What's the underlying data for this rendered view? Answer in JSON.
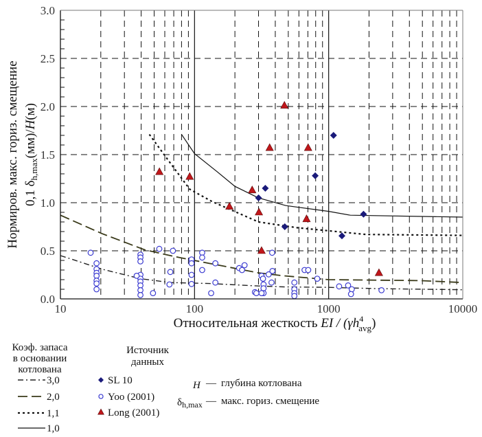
{
  "chart_data": {
    "type": "scatter",
    "x_scale": "log",
    "xlim": [
      10,
      10000
    ],
    "ylim": [
      0,
      3.0
    ],
    "x_ticks": [
      "10",
      "100",
      "1000",
      "10000"
    ],
    "y_ticks": [
      "0.0",
      "0.5",
      "1.0",
      "1.5",
      "2.0",
      "2.5",
      "3.0"
    ],
    "grid": true,
    "xlabel": {
      "text": "Относительная жесткость ",
      "formula": "EI / (γh",
      "sup": "4",
      "sub": "avg",
      "close": ")"
    },
    "ylabel": {
      "line1": "Нормиров. макс. гориз. смещение",
      "line2_pre": "0,1 δ",
      "line2_sub": "h,max",
      "line2_post": "(мм)/",
      "line2_H": "H",
      "line2_end": "(м)"
    },
    "curves": [
      {
        "name": "3,0",
        "style": "dashdot",
        "color": "#222222",
        "points": [
          [
            10,
            0.45
          ],
          [
            11.7,
            0.42
          ],
          [
            20.3,
            0.31
          ],
          [
            39.5,
            0.21
          ],
          [
            66,
            0.17
          ],
          [
            128,
            0.16
          ],
          [
            290,
            0.135
          ],
          [
            461,
            0.125
          ],
          [
            1000,
            0.12
          ],
          [
            2220,
            0.107
          ],
          [
            10000,
            0.095
          ]
        ]
      },
      {
        "name": "2,0",
        "style": "dashed",
        "color": "#3a3a1a",
        "points": [
          [
            10,
            0.87
          ],
          [
            20.3,
            0.68
          ],
          [
            42.6,
            0.51
          ],
          [
            71,
            0.44
          ],
          [
            128,
            0.37
          ],
          [
            302,
            0.27
          ],
          [
            461,
            0.24
          ],
          [
            1000,
            0.2
          ],
          [
            4860,
            0.19
          ],
          [
            10000,
            0.17
          ]
        ]
      },
      {
        "name": "1,1",
        "style": "dotted",
        "color": "#111111",
        "points": [
          [
            46,
            1.71
          ],
          [
            60,
            1.49
          ],
          [
            92,
            1.14
          ],
          [
            136,
            1.01
          ],
          [
            300,
            0.8
          ],
          [
            582,
            0.74
          ],
          [
            1890,
            0.67
          ],
          [
            10000,
            0.66
          ]
        ]
      },
      {
        "name": "1,0",
        "style": "solid",
        "color": "#111111",
        "points": [
          [
            80,
            1.71
          ],
          [
            100,
            1.51
          ],
          [
            148,
            1.32
          ],
          [
            200,
            1.17
          ],
          [
            300,
            1.05
          ],
          [
            479,
            0.97
          ],
          [
            1000,
            0.91
          ],
          [
            1450,
            0.87
          ],
          [
            10000,
            0.85
          ]
        ]
      }
    ],
    "series": [
      {
        "name": "SL 10",
        "marker": "diamond",
        "color": "#1a1a7a",
        "points": [
          [
            1087,
            1.7
          ],
          [
            794,
            1.28
          ],
          [
            337,
            1.15
          ],
          [
            300,
            1.05
          ],
          [
            1820,
            0.88
          ],
          [
            471,
            0.75
          ],
          [
            1256,
            0.655
          ]
        ]
      },
      {
        "name": "Yoo (2001)",
        "marker": "circle-open",
        "color": "#3a3ad0",
        "points": [
          [
            16.8,
            0.48
          ],
          [
            18.6,
            0.37
          ],
          [
            18.6,
            0.31
          ],
          [
            18.6,
            0.27
          ],
          [
            18.6,
            0.24
          ],
          [
            18.6,
            0.19
          ],
          [
            18.6,
            0.16
          ],
          [
            18.6,
            0.1
          ],
          [
            39.5,
            0.46
          ],
          [
            39.5,
            0.43
          ],
          [
            39.5,
            0.39
          ],
          [
            39.5,
            0.25
          ],
          [
            39.5,
            0.21
          ],
          [
            39.5,
            0.18
          ],
          [
            39.5,
            0.14
          ],
          [
            39.5,
            0.09
          ],
          [
            39.5,
            0.04
          ],
          [
            37,
            0.24
          ],
          [
            49,
            0.06
          ],
          [
            54.6,
            0.52
          ],
          [
            69,
            0.5
          ],
          [
            66,
            0.28
          ],
          [
            65,
            0.15
          ],
          [
            95,
            0.41
          ],
          [
            95,
            0.37
          ],
          [
            95,
            0.25
          ],
          [
            95,
            0.155
          ],
          [
            114,
            0.48
          ],
          [
            114,
            0.43
          ],
          [
            114,
            0.3
          ],
          [
            143,
            0.37
          ],
          [
            143,
            0.17
          ],
          [
            133,
            0.06
          ],
          [
            215,
            0.32
          ],
          [
            226,
            0.3
          ],
          [
            236,
            0.35
          ],
          [
            282,
            0.07
          ],
          [
            289,
            0.06
          ],
          [
            316,
            0.24
          ],
          [
            324,
            0.21
          ],
          [
            327,
            0.15
          ],
          [
            327,
            0.11
          ],
          [
            327,
            0.06
          ],
          [
            316,
            0.06
          ],
          [
            379,
            0.48
          ],
          [
            357,
            0.255
          ],
          [
            381,
            0.29
          ],
          [
            375,
            0.17
          ],
          [
            555,
            0.17
          ],
          [
            555,
            0.1
          ],
          [
            555,
            0.06
          ],
          [
            555,
            0.03
          ],
          [
            661,
            0.3
          ],
          [
            704,
            0.3
          ],
          [
            822,
            0.21
          ],
          [
            1197,
            0.13
          ],
          [
            1396,
            0.14
          ],
          [
            1487,
            0.1
          ],
          [
            1468,
            0.05
          ],
          [
            2477,
            0.09
          ]
        ]
      },
      {
        "name": "Long (2001)",
        "marker": "triangle",
        "color": "#c0171b",
        "points": [
          [
            468,
            2.01
          ],
          [
            363,
            1.57
          ],
          [
            703,
            1.57
          ],
          [
            54.7,
            1.32
          ],
          [
            92,
            1.27
          ],
          [
            269,
            1.13
          ],
          [
            182,
            0.96
          ],
          [
            302,
            0.9
          ],
          [
            684,
            0.83
          ],
          [
            316,
            0.5
          ],
          [
            2371,
            0.27
          ]
        ]
      }
    ]
  },
  "legend": {
    "curves_title": [
      "Коэф. запаса",
      "в основании",
      "котлована"
    ],
    "sources_title": [
      "Источник",
      "данных"
    ],
    "notation": [
      {
        "symbol": "H",
        "dash": "—",
        "text": "глубина котлована"
      },
      {
        "symbol": "δ",
        "symbol_sub": "h,max",
        "dash": "—",
        "text": "макс. гориз. смещение"
      }
    ]
  }
}
